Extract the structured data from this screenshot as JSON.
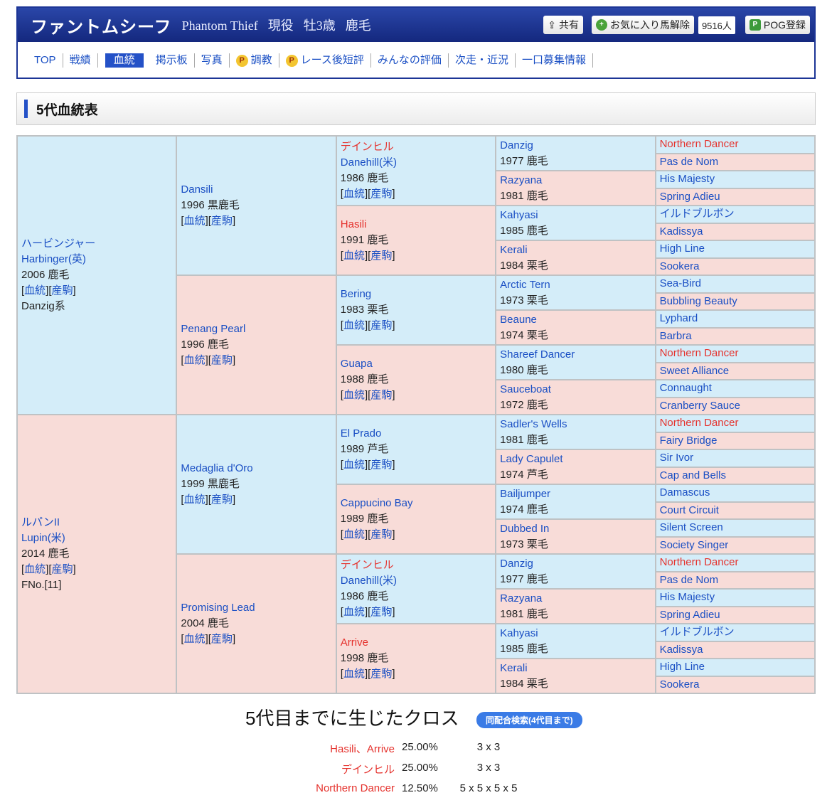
{
  "header": {
    "title": "ファントムシーフ",
    "name_en": "Phantom Thief",
    "status": "現役",
    "sex_age": "牡3歳",
    "coat": "鹿毛",
    "share_label": "共有",
    "fav_label": "お気に入り馬解除",
    "fav_count": "9516人",
    "pog_label": "POG登録"
  },
  "nav": [
    {
      "label": "TOP"
    },
    {
      "label": "戦績"
    },
    {
      "label": "血統",
      "active": true
    },
    {
      "label": "掲示板"
    },
    {
      "label": "写真"
    },
    {
      "label": "調教",
      "premium": true
    },
    {
      "label": "レース後短評",
      "premium": true
    },
    {
      "label": "みんなの評価"
    },
    {
      "label": "次走・近況"
    },
    {
      "label": "一口募集情報"
    }
  ],
  "section_title": "5代血統表",
  "link_labels": {
    "pedigree": "血統",
    "progeny": "産駒"
  },
  "pedigree": {
    "gen1": [
      {
        "jp": "ハービンジャー",
        "name": "Harbinger(英)",
        "info": "2006 鹿毛",
        "links": true,
        "extra": "Danzig系",
        "sex": "m"
      },
      {
        "jp": "ルパンII",
        "name": "Lupin(米)",
        "info": "2014 鹿毛",
        "links": true,
        "extra": "FNo.[11]",
        "sex": "f"
      }
    ],
    "gen2": [
      {
        "name": "Dansili",
        "info": "1996 黒鹿毛",
        "links": true,
        "sex": "m"
      },
      {
        "name": "Penang Pearl",
        "info": "1996 鹿毛",
        "links": true,
        "sex": "f"
      },
      {
        "name": "Medaglia d'Oro",
        "info": "1999 黒鹿毛",
        "links": true,
        "sex": "m"
      },
      {
        "name": "Promising Lead",
        "info": "2004 鹿毛",
        "links": true,
        "sex": "f"
      }
    ],
    "gen3": [
      {
        "jp": "デインヒル",
        "jp_red": true,
        "name": "Danehill(米)",
        "info": "1986 鹿毛",
        "links": true,
        "sex": "m"
      },
      {
        "name": "Hasili",
        "red": true,
        "info": "1991 鹿毛",
        "links": true,
        "sex": "f"
      },
      {
        "name": "Bering",
        "info": "1983 栗毛",
        "links": true,
        "sex": "m"
      },
      {
        "name": "Guapa",
        "info": "1988 鹿毛",
        "links": true,
        "sex": "f"
      },
      {
        "name": "El Prado",
        "info": "1989 芦毛",
        "links": true,
        "sex": "m"
      },
      {
        "name": "Cappucino Bay",
        "info": "1989 鹿毛",
        "links": true,
        "sex": "f"
      },
      {
        "jp": "デインヒル",
        "jp_red": true,
        "name": "Danehill(米)",
        "info": "1986 鹿毛",
        "links": true,
        "sex": "m"
      },
      {
        "name": "Arrive",
        "red": true,
        "info": "1998 鹿毛",
        "links": true,
        "sex": "f"
      }
    ],
    "gen4": [
      {
        "name": "Danzig",
        "info": "1977 鹿毛",
        "sex": "m"
      },
      {
        "name": "Razyana",
        "info": "1981 鹿毛",
        "sex": "f"
      },
      {
        "name": "Kahyasi",
        "info": "1985 鹿毛",
        "sex": "m"
      },
      {
        "name": "Kerali",
        "info": "1984 栗毛",
        "sex": "f"
      },
      {
        "name": "Arctic Tern",
        "info": "1973 栗毛",
        "sex": "m"
      },
      {
        "name": "Beaune",
        "info": "1974 栗毛",
        "sex": "f"
      },
      {
        "name": "Shareef Dancer",
        "info": "1980 鹿毛",
        "sex": "m"
      },
      {
        "name": "Sauceboat",
        "info": "1972 鹿毛",
        "sex": "f"
      },
      {
        "name": "Sadler's Wells",
        "info": "1981 鹿毛",
        "sex": "m"
      },
      {
        "name": "Lady Capulet",
        "info": "1974 芦毛",
        "sex": "f"
      },
      {
        "name": "Bailjumper",
        "info": "1974 鹿毛",
        "sex": "m"
      },
      {
        "name": "Dubbed In",
        "info": "1973 栗毛",
        "sex": "f"
      },
      {
        "name": "Danzig",
        "info": "1977 鹿毛",
        "sex": "m"
      },
      {
        "name": "Razyana",
        "info": "1981 鹿毛",
        "sex": "f"
      },
      {
        "name": "Kahyasi",
        "info": "1985 鹿毛",
        "sex": "m"
      },
      {
        "name": "Kerali",
        "info": "1984 栗毛",
        "sex": "f"
      }
    ],
    "gen5": [
      {
        "name": "Northern Dancer",
        "red": true
      },
      {
        "name": "Pas de Nom"
      },
      {
        "name": "His Majesty"
      },
      {
        "name": "Spring Adieu"
      },
      {
        "name": "イルドブルボン"
      },
      {
        "name": "Kadissya"
      },
      {
        "name": "High Line"
      },
      {
        "name": "Sookera"
      },
      {
        "name": "Sea-Bird"
      },
      {
        "name": "Bubbling Beauty"
      },
      {
        "name": "Lyphard"
      },
      {
        "name": "Barbra"
      },
      {
        "name": "Northern Dancer",
        "red": true
      },
      {
        "name": "Sweet Alliance"
      },
      {
        "name": "Connaught"
      },
      {
        "name": "Cranberry Sauce"
      },
      {
        "name": "Northern Dancer",
        "red": true
      },
      {
        "name": "Fairy Bridge"
      },
      {
        "name": "Sir Ivor"
      },
      {
        "name": "Cap and Bells"
      },
      {
        "name": "Damascus"
      },
      {
        "name": "Court Circuit"
      },
      {
        "name": "Silent Screen"
      },
      {
        "name": "Society Singer"
      },
      {
        "name": "Northern Dancer",
        "red": true
      },
      {
        "name": "Pas de Nom"
      },
      {
        "name": "His Majesty"
      },
      {
        "name": "Spring Adieu"
      },
      {
        "name": "イルドブルボン"
      },
      {
        "name": "Kadissya"
      },
      {
        "name": "High Line"
      },
      {
        "name": "Sookera"
      }
    ]
  },
  "crosses": {
    "title": "5代目までに生じたクロス",
    "search_label": "同配合検索(4代目まで)",
    "rows": [
      {
        "name": "Hasili、Arrive",
        "pct": "25.00%",
        "gens": "3 x 3"
      },
      {
        "name": "デインヒル",
        "pct": "25.00%",
        "gens": "3 x 3"
      },
      {
        "name": "Northern Dancer",
        "pct": "12.50%",
        "gens": "5 x 5 x 5 x 5"
      }
    ]
  },
  "colors": {
    "male_cell": "#d4edf9",
    "female_cell": "#f8dcd8",
    "link": "#1a4fc4",
    "cross_red": "#e5322d",
    "header": "#1c3596"
  }
}
